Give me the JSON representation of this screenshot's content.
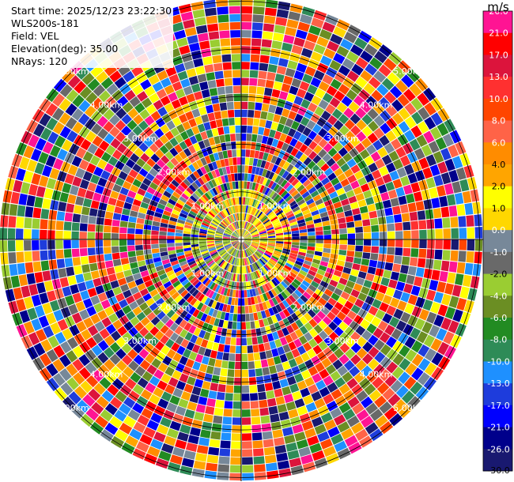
{
  "header": {
    "start_time": "Start time: 2025/12/23 23:22:30",
    "instrument": "WLS200s-181",
    "field": "Field: VEL",
    "elevation": "Elevation(deg): 35.00",
    "nrays": "NRays: 120"
  },
  "colorbar": {
    "unit": "m/s",
    "segments": [
      {
        "label": "26.0",
        "color": "#ff1493"
      },
      {
        "label": "21.0",
        "color": "#ff0000"
      },
      {
        "label": "17.0",
        "color": "#dc143c"
      },
      {
        "label": "13.0",
        "color": "#ff3030"
      },
      {
        "label": "10.0",
        "color": "#ff4500"
      },
      {
        "label": "8.0",
        "color": "#ff6347"
      },
      {
        "label": "6.0",
        "color": "#ff8c00"
      },
      {
        "label": "4.0",
        "color": "#ffa500"
      },
      {
        "label": "2.0",
        "color": "#ffff00"
      },
      {
        "label": "1.0",
        "color": "#ffd700"
      },
      {
        "label": "0.0",
        "color": "#778899"
      },
      {
        "label": "-1.0",
        "color": "#696969"
      },
      {
        "label": "-2.0",
        "color": "#9acd32"
      },
      {
        "label": "-4.0",
        "color": "#6b8e23"
      },
      {
        "label": "-6.0",
        "color": "#228b22"
      },
      {
        "label": "-8.0",
        "color": "#2e8b57"
      },
      {
        "label": "-10.0",
        "color": "#1e90ff"
      },
      {
        "label": "-13.0",
        "color": "#1e3cdc"
      },
      {
        "label": "-17.0",
        "color": "#0000ff"
      },
      {
        "label": "-21.0",
        "color": "#00008b"
      },
      {
        "label": "-26.0",
        "color": "#191970"
      }
    ],
    "bottom_label": "-30.0"
  },
  "chart_data": {
    "type": "heatmap",
    "projection": "polar PPI",
    "field": "VEL",
    "units": "m/s",
    "nrays": 120,
    "range_rings_km": [
      1.0,
      2.0,
      3.0,
      4.0,
      5.0
    ],
    "ring_labels": [
      "1.00km",
      "2.00km",
      "3.00km",
      "4.00km",
      "5.00km"
    ],
    "vmin": -30.0,
    "vmax": 26.0
  }
}
